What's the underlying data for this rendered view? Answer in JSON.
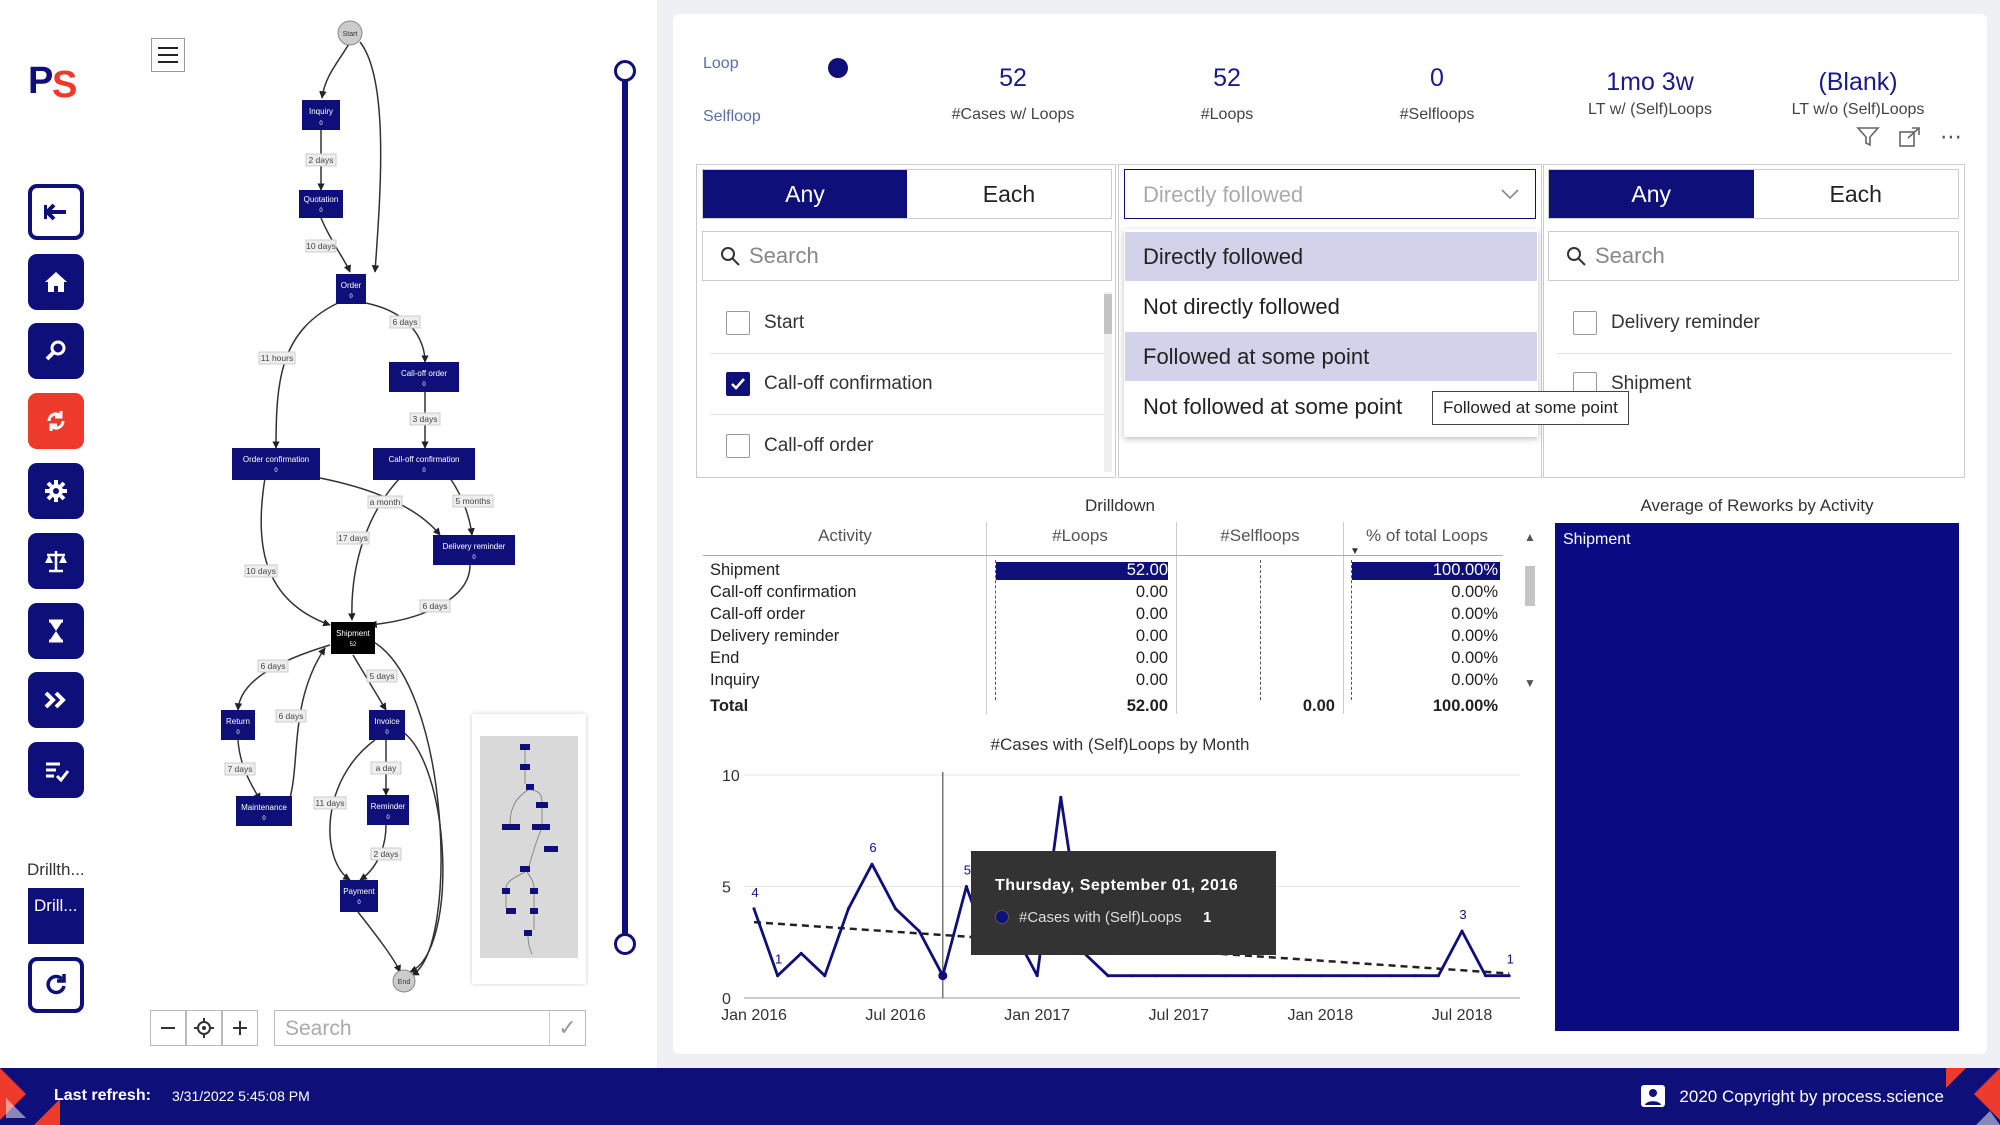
{
  "sidebar": {
    "logo_text": "PS",
    "buttons": [
      {
        "name": "back",
        "icon": "arrow-left-icon"
      },
      {
        "name": "home",
        "icon": "home-icon"
      },
      {
        "name": "search",
        "icon": "search-icon"
      },
      {
        "name": "loops",
        "icon": "loop-icon"
      },
      {
        "name": "settings",
        "icon": "gear-icon"
      },
      {
        "name": "compliance",
        "icon": "scale-icon"
      },
      {
        "name": "time",
        "icon": "hourglass-icon"
      },
      {
        "name": "forward",
        "icon": "fast-forward-icon"
      },
      {
        "name": "checklist",
        "icon": "checklist-icon"
      }
    ],
    "drill_label": "Drillth...",
    "drill_card": "Drill...",
    "refresh_icon": "refresh-icon"
  },
  "process_map": {
    "nodes": {
      "start": "Start",
      "inquiry": "Inquiry",
      "quotation": "Quotation",
      "order": "Order",
      "calloff_order": "Call-off order",
      "order_confirmation": "Order confirmation",
      "calloff_confirmation": "Call-off confirmation",
      "delivery_reminder": "Delivery reminder",
      "shipment": "Shipment",
      "shipment_count": "52",
      "return": "Return",
      "invoice": "Invoice",
      "maintenance": "Maintenance",
      "reminder": "Reminder",
      "payment": "Payment",
      "end": "End",
      "zero": "0"
    },
    "edges": {
      "e1": "2 days",
      "e2": "10 days",
      "e3": "6 days",
      "e4": "11 hours",
      "e5": "3 days",
      "e6": "a month",
      "e7": "5 months",
      "e8": "17 days",
      "e9": "10 days",
      "e10": "6 days",
      "e11": "6 days",
      "e12": "5 days",
      "e13": "6 days",
      "e14": "7 days",
      "e15": "a day",
      "e16": "11 days",
      "e17": "2 days",
      "dash": "-"
    },
    "search_placeholder": "Search"
  },
  "kpis": {
    "loop_label": "Loop",
    "selfloop_label": "Selfloop",
    "items": [
      {
        "value": "52",
        "label": "#Cases w/ Loops"
      },
      {
        "value": "52",
        "label": "#Loops"
      },
      {
        "value": "0",
        "label": "#Selfloops"
      },
      {
        "value": "1mo 3w",
        "label": "LT w/ (Self)Loops"
      },
      {
        "value": "(Blank)",
        "label": "LT w/o (Self)Loops"
      }
    ]
  },
  "filters": {
    "left": {
      "tab_any": "Any",
      "tab_each": "Each",
      "search_placeholder": "Search",
      "items": [
        {
          "label": "Start",
          "checked": false
        },
        {
          "label": "Call-off confirmation",
          "checked": true
        },
        {
          "label": "Call-off order",
          "checked": false
        }
      ]
    },
    "dropdown": {
      "selected": "Directly followed",
      "options": [
        "Directly followed",
        "Not directly followed",
        "Followed at some point",
        "Not followed at some point"
      ],
      "tooltip": "Followed at some point"
    },
    "right": {
      "tab_any": "Any",
      "tab_each": "Each",
      "search_placeholder": "Search",
      "items": [
        {
          "label": "Delivery reminder",
          "checked": false
        },
        {
          "label": "Shipment",
          "checked": false
        }
      ]
    }
  },
  "drilldown": {
    "title": "Drilldown",
    "columns": [
      "Activity",
      "#Loops",
      "#Selfloops",
      "% of total Loops"
    ],
    "rows": [
      {
        "activity": "Shipment",
        "loops": "52.00",
        "pct": "100.00%",
        "loops_value": 52,
        "pct_value": 100
      },
      {
        "activity": "Call-off confirmation",
        "loops": "0.00",
        "pct": "0.00%",
        "loops_value": 0,
        "pct_value": 0
      },
      {
        "activity": "Call-off order",
        "loops": "0.00",
        "pct": "0.00%",
        "loops_value": 0,
        "pct_value": 0
      },
      {
        "activity": "Delivery reminder",
        "loops": "0.00",
        "pct": "0.00%",
        "loops_value": 0,
        "pct_value": 0
      },
      {
        "activity": "End",
        "loops": "0.00",
        "pct": "0.00%",
        "loops_value": 0,
        "pct_value": 0
      },
      {
        "activity": "Inquiry",
        "loops": "0.00",
        "pct": "0.00%",
        "loops_value": 0,
        "pct_value": 0
      }
    ],
    "total": {
      "label": "Total",
      "loops": "52.00",
      "selfloops": "0.00",
      "pct": "100.00%"
    }
  },
  "treemap": {
    "title": "Average of Reworks by Activity",
    "cell_label": "Shipment",
    "color": "#0a0a82"
  },
  "chart_data": {
    "type": "line",
    "title": "#Cases with (Self)Loops by Month",
    "x_ticks": [
      "Jan 2016",
      "Jul 2016",
      "Jan 2017",
      "Jul 2017",
      "Jan 2018",
      "Jul 2018"
    ],
    "y_ticks": [
      "10",
      "5",
      "0"
    ],
    "ylim": [
      0,
      10
    ],
    "x_labels": [
      "Jan 2016",
      "Feb 2016",
      "Mar 2016",
      "Apr 2016",
      "May 2016",
      "Jun 2016",
      "Jul 2016",
      "Aug 2016",
      "Sep 2016",
      "Oct 2016",
      "Nov 2016",
      "Dec 2016",
      "Jan 2017",
      "Feb 2017",
      "Mar 2017",
      "Apr 2017",
      "May 2017",
      "Jun 2017",
      "Jul 2017",
      "Aug 2017",
      "Sep 2017",
      "Oct 2017",
      "Nov 2017",
      "Dec 2017",
      "Jan 2018",
      "Feb 2018",
      "Mar 2018",
      "Apr 2018",
      "May 2018",
      "Jun 2018",
      "Jul 2018",
      "Aug 2018",
      "Sep 2018"
    ],
    "series": [
      {
        "name": "#Cases with (Self)Loops",
        "values": [
          4,
          1,
          2,
          1,
          4,
          6,
          4,
          3,
          1,
          5,
          2,
          3,
          1,
          9,
          2,
          1,
          1,
          1,
          1,
          1,
          1,
          1,
          1,
          1,
          1,
          1,
          1,
          1,
          1,
          1,
          3,
          1,
          1
        ]
      }
    ],
    "trend": {
      "start": 3.4,
      "end": 1.1
    },
    "point_labels": [
      {
        "index": 0,
        "text": "4"
      },
      {
        "index": 1,
        "text": "1"
      },
      {
        "index": 5,
        "text": "6"
      },
      {
        "index": 9,
        "text": "5"
      },
      {
        "index": 30,
        "text": "3"
      },
      {
        "index": 32,
        "text": "1"
      }
    ],
    "tooltip": {
      "date": "Thursday, September 01, 2016",
      "series": "#Cases with (Self)Loops",
      "value": "1"
    },
    "colors": {
      "line": "#0f0f7a",
      "trend": "#222222"
    }
  },
  "footer": {
    "refresh_label": "Last refresh:",
    "refresh_value": "3/31/2022 5:45:08 PM",
    "copyright": "2020 Copyright by process.science",
    "user_icon": "user-icon"
  }
}
